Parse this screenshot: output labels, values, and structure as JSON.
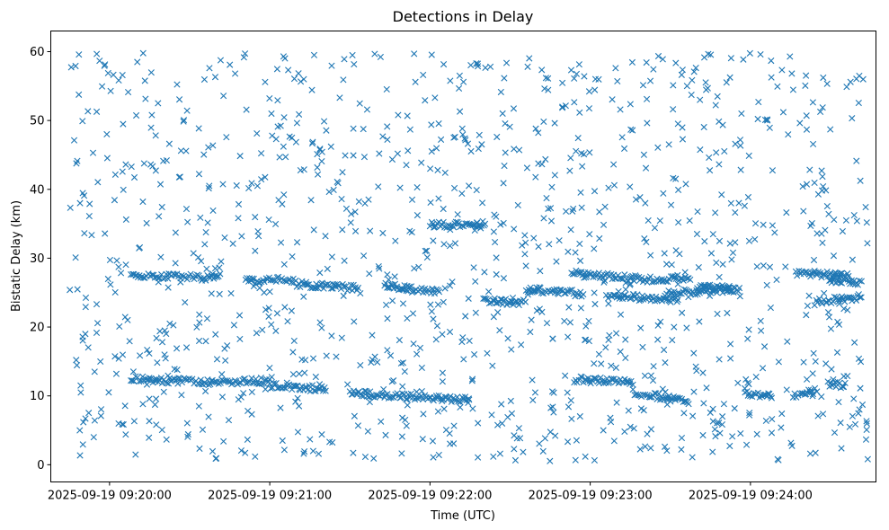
{
  "chart_data": {
    "type": "scatter",
    "title": "Detections in Delay",
    "xlabel": "Time (UTC)",
    "ylabel": "Bistatic Delay (km)",
    "x_unit": "seconds after 2025-09-19 09:19:00 UTC",
    "xlim": [
      38,
      347
    ],
    "ylim": [
      -2.5,
      63
    ],
    "marker": "x",
    "series_color": "#1f77b4",
    "x_ticks": [
      {
        "value": 60,
        "label": "2025-09-19 09:20:00"
      },
      {
        "value": 120,
        "label": "2025-09-19 09:21:00"
      },
      {
        "value": 180,
        "label": "2025-09-19 09:22:00"
      },
      {
        "value": 240,
        "label": "2025-09-19 09:23:00"
      },
      {
        "value": 300,
        "label": "2025-09-19 09:24:00"
      }
    ],
    "y_ticks": [
      {
        "value": 0,
        "label": "0"
      },
      {
        "value": 10,
        "label": "10"
      },
      {
        "value": 20,
        "label": "20"
      },
      {
        "value": 30,
        "label": "30"
      },
      {
        "value": 40,
        "label": "40"
      },
      {
        "value": 50,
        "label": "50"
      },
      {
        "value": 60,
        "label": "60"
      }
    ],
    "series": [
      {
        "name": "detections",
        "tracks": [
          {
            "x_start": 68,
            "x_end": 96,
            "y_start": 27.6,
            "y_end": 27.2
          },
          {
            "x_start": 96,
            "x_end": 102,
            "y_start": 27.2,
            "y_end": 27.5
          },
          {
            "x_start": 111,
            "x_end": 129,
            "y_start": 26.7,
            "y_end": 26.9
          },
          {
            "x_start": 129,
            "x_end": 153,
            "y_start": 26.3,
            "y_end": 25.6
          },
          {
            "x_start": 163,
            "x_end": 184,
            "y_start": 26.0,
            "y_end": 25.0
          },
          {
            "x_start": 180,
            "x_end": 201,
            "y_start": 34.8,
            "y_end": 35.0
          },
          {
            "x_start": 200,
            "x_end": 216,
            "y_start": 23.9,
            "y_end": 23.5
          },
          {
            "x_start": 216,
            "x_end": 238,
            "y_start": 25.5,
            "y_end": 24.8
          },
          {
            "x_start": 233,
            "x_end": 265,
            "y_start": 27.8,
            "y_end": 26.8
          },
          {
            "x_start": 246,
            "x_end": 273,
            "y_start": 24.5,
            "y_end": 24.0
          },
          {
            "x_start": 265,
            "x_end": 278,
            "y_start": 26.9,
            "y_end": 27.3
          },
          {
            "x_start": 268,
            "x_end": 292,
            "y_start": 24.8,
            "y_end": 25.5
          },
          {
            "x_start": 281,
            "x_end": 296,
            "y_start": 25.8,
            "y_end": 25.5
          },
          {
            "x_start": 317,
            "x_end": 337,
            "y_start": 27.9,
            "y_end": 27.4
          },
          {
            "x_start": 324,
            "x_end": 342,
            "y_start": 23.6,
            "y_end": 24.4
          },
          {
            "x_start": 330,
            "x_end": 342,
            "y_start": 26.9,
            "y_end": 26.5
          },
          {
            "x_start": 68,
            "x_end": 96,
            "y_start": 12.5,
            "y_end": 12.0
          },
          {
            "x_start": 96,
            "x_end": 120,
            "y_start": 12.0,
            "y_end": 12.2
          },
          {
            "x_start": 120,
            "x_end": 141,
            "y_start": 11.5,
            "y_end": 11.0
          },
          {
            "x_start": 150,
            "x_end": 195,
            "y_start": 10.4,
            "y_end": 9.4
          },
          {
            "x_start": 234,
            "x_end": 256,
            "y_start": 12.4,
            "y_end": 12.0
          },
          {
            "x_start": 256,
            "x_end": 277,
            "y_start": 10.5,
            "y_end": 9.2
          },
          {
            "x_start": 298,
            "x_end": 308,
            "y_start": 10.3,
            "y_end": 10.0
          },
          {
            "x_start": 316,
            "x_end": 325,
            "y_start": 10.1,
            "y_end": 10.8
          },
          {
            "x_start": 329,
            "x_end": 336,
            "y_start": 11.8,
            "y_end": 11.5
          }
        ],
        "track_point_spacing_s": 0.55,
        "scatter_count": 1150,
        "scatter_x_range": [
          45,
          345
        ],
        "scatter_y_range": [
          0.5,
          59.8
        ]
      }
    ]
  }
}
